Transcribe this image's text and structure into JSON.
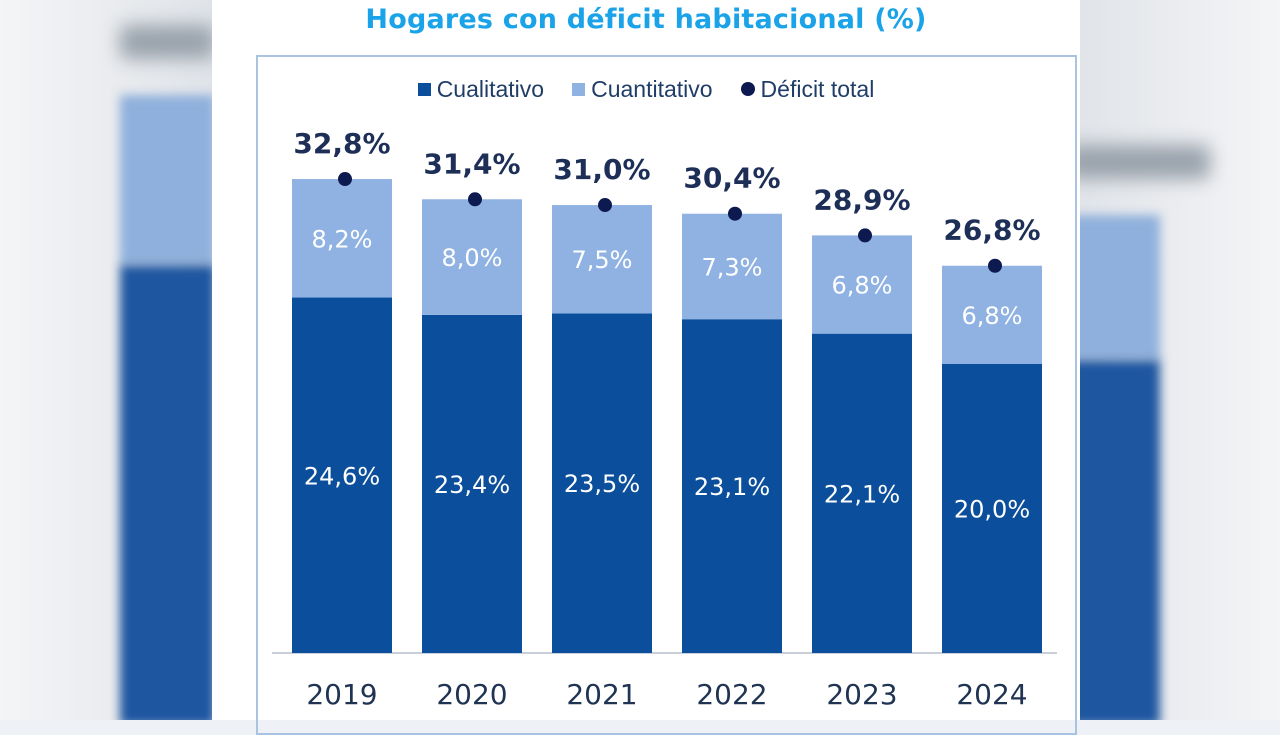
{
  "chart_data": {
    "type": "bar",
    "stacked": true,
    "title": "Hogares con déficit habitacional (%)",
    "categories": [
      "2019",
      "2020",
      "2021",
      "2022",
      "2023",
      "2024"
    ],
    "series": [
      {
        "name": "Cualitativo",
        "values": [
          24.6,
          23.4,
          23.5,
          23.1,
          22.1,
          20.0
        ],
        "labels": [
          "24,6%",
          "23,4%",
          "23,5%",
          "23,1%",
          "22,1%",
          "20,0%"
        ],
        "color": "#0b4f9c"
      },
      {
        "name": "Cuantitativo",
        "values": [
          8.2,
          8.0,
          7.5,
          7.3,
          6.8,
          6.8
        ],
        "labels": [
          "8,2%",
          "8,0%",
          "7,5%",
          "7,3%",
          "6,8%",
          "6,8%"
        ],
        "color": "#8fb2e3"
      }
    ],
    "total": {
      "name": "Déficit total",
      "values": [
        32.8,
        31.4,
        31.0,
        30.4,
        28.9,
        26.8
      ],
      "labels": [
        "32,8%",
        "31,4%",
        "31,0%",
        "30,4%",
        "28,9%",
        "26,8%"
      ],
      "color": "#0d1a4f"
    },
    "xlabel": "",
    "ylabel": "",
    "ylim": [
      0,
      35
    ],
    "grid": false,
    "legend_position": "top-center"
  },
  "colors": {
    "title": "#1aa3e8",
    "axis": "#c8cfd8"
  }
}
